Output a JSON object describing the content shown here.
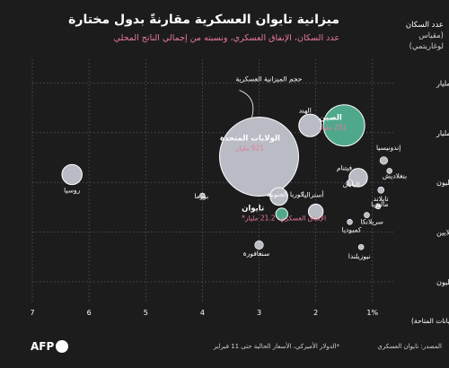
{
  "header": {
    "title": "ميزانية تايوان العسكرية مقارنةً بدول مختارة",
    "subtitle": "عدد السكان، الإنفاق العسكري، ونسبته من إجمالي الناتج المحلي"
  },
  "footer": {
    "source": "المصدر: تايوان العسكري",
    "note": "*الدولار الأميركي، الأسعار الحالية حتى 11 فبراير"
  },
  "brand": {
    "logo": "AFP"
  },
  "colors": {
    "background": "#1c1c1c",
    "bubble": "#b9bcc4",
    "highlight": "#4fa88c",
    "accent": "#e87a9b",
    "grid": "#6a6a6a",
    "text": "#ffffff"
  },
  "chart_data": {
    "type": "scatter",
    "title": "ميزانية تايوان العسكرية مقارنةً بدول مختارة",
    "subtitle": "عدد السكان، الإنفاق العسكري، ونسبته من إجمالي الناتج المحلي",
    "xlabel": "نسبة الإنفاق العسكري من إجمالي الناتج المحلي (آخر البيانات المتاحة)",
    "ylabel": "عدد السكان",
    "ylabel_note": "(مقياس لوغاريتمي)",
    "xlim": [
      7,
      0.6
    ],
    "x_reversed": true,
    "y_scale": "log",
    "ylim": [
      400000,
      30000000000
    ],
    "x_ticks": [
      {
        "value": 7,
        "label": "7"
      },
      {
        "value": 6,
        "label": "6"
      },
      {
        "value": 5,
        "label": "5"
      },
      {
        "value": 4,
        "label": "4"
      },
      {
        "value": 3,
        "label": "3"
      },
      {
        "value": 2,
        "label": "2"
      },
      {
        "value": 1,
        "label": "1%"
      }
    ],
    "y_ticks": [
      {
        "value": 1000000,
        "label": "1 مليون"
      },
      {
        "value": 10000000,
        "label": "10 ملايين"
      },
      {
        "value": 100000000,
        "label": "100 مليون"
      },
      {
        "value": 1000000000,
        "label": "1 مليار"
      },
      {
        "value": 10000000000,
        "label": "10 مليار"
      }
    ],
    "grid": true,
    "size_legend": "حجم الميزانية العسكرية",
    "points": [
      {
        "name": "الولايات المتحدة",
        "x": 3.0,
        "y": 330000000,
        "budget": 921,
        "highlight": false,
        "detail": "921 مليار"
      },
      {
        "name": "الصين",
        "x": 1.5,
        "y": 1400000000,
        "budget": 251,
        "highlight": true,
        "detail": "251 مليار"
      },
      {
        "name": "الهند",
        "x": 2.1,
        "y": 1400000000,
        "budget": 75,
        "highlight": false
      },
      {
        "name": "روسيا",
        "x": 6.3,
        "y": 144000000,
        "budget": 60,
        "highlight": false
      },
      {
        "name": "اليابان",
        "x": 1.25,
        "y": 125000000,
        "budget": 50,
        "highlight": false
      },
      {
        "name": "كوريا الجنوبية",
        "x": 2.65,
        "y": 52000000,
        "budget": 46,
        "highlight": false
      },
      {
        "name": "تايوان",
        "x": 2.6,
        "y": 23000000,
        "budget": 21.2,
        "highlight": true,
        "detail": "الإنفاق العسكري: 21.2 مليار*"
      },
      {
        "name": "أستراليا",
        "x": 2.0,
        "y": 26000000,
        "budget": 32,
        "highlight": false
      },
      {
        "name": "إندونيسيا",
        "x": 0.8,
        "y": 275000000,
        "budget": 9,
        "highlight": false
      },
      {
        "name": "فيتنام",
        "x": 1.4,
        "y": 98000000,
        "budget": 6,
        "highlight": false
      },
      {
        "name": "بنغلاديش",
        "x": 0.7,
        "y": 170000000,
        "budget": 4,
        "highlight": false
      },
      {
        "name": "تايلاند",
        "x": 0.85,
        "y": 70000000,
        "budget": 6,
        "highlight": false
      },
      {
        "name": "ماليزيا",
        "x": 0.9,
        "y": 33000000,
        "budget": 4,
        "highlight": false
      },
      {
        "name": "سريلانكا",
        "x": 1.1,
        "y": 22000000,
        "budget": 1.5,
        "highlight": false
      },
      {
        "name": "كمبوديا",
        "x": 1.4,
        "y": 16000000,
        "budget": 1,
        "highlight": false
      },
      {
        "name": "نيوزيلندا",
        "x": 1.2,
        "y": 5000000,
        "budget": 3,
        "highlight": false
      },
      {
        "name": "سنغافورة",
        "x": 3.0,
        "y": 5500000,
        "budget": 11,
        "highlight": false
      },
      {
        "name": "بورما",
        "x": 4.0,
        "y": 54000000,
        "budget": 2,
        "highlight": false
      }
    ]
  }
}
